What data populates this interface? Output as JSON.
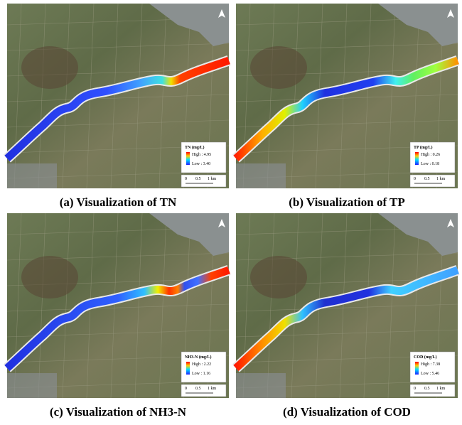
{
  "panels": [
    {
      "caption": "(a) Visualization of TN",
      "legend": {
        "title": "TN (mg/L)",
        "high": "High : 4.95",
        "low": "Low : 3.40"
      },
      "scale": [
        "0",
        "0.5",
        "1 km"
      ]
    },
    {
      "caption": "(b) Visualization of TP",
      "legend": {
        "title": "TP (mg/L)",
        "high": "High : 0.26",
        "low": "Low : 0.18"
      },
      "scale": [
        "0",
        "0.5",
        "1 km"
      ]
    },
    {
      "caption": "(c) Visualization of NH3-N",
      "legend": {
        "title": "NH3-N (mg/L)",
        "high": "High : 2.22",
        "low": "Low : 1.16"
      },
      "scale": [
        "0",
        "0.5",
        "1 km"
      ]
    },
    {
      "caption": "(d) Visualization of COD",
      "legend": {
        "title": "COD (mg/L)",
        "high": "High : 7.38",
        "low": "Low : 5.46"
      },
      "scale": [
        "0",
        "0.5",
        "1 km"
      ]
    }
  ]
}
